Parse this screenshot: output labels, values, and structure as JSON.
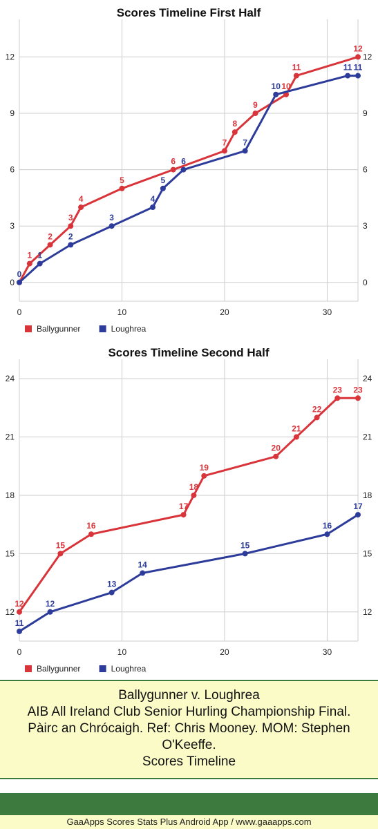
{
  "colors": {
    "series_a": "#d8343a",
    "series_b": "#2d3c9a",
    "grid": "#cccccc",
    "info_bg": "#fbfbc8",
    "green": "#3d7a3d"
  },
  "chart_data": [
    {
      "type": "line",
      "title": "Scores Timeline First Half",
      "xlim": [
        0,
        33
      ],
      "ylim": [
        -1,
        14
      ],
      "xticks": [
        0,
        10,
        20,
        30
      ],
      "yticks": [
        0,
        3,
        6,
        9,
        12
      ],
      "grid": true,
      "legend_position": "bottom-left",
      "series": [
        {
          "name": "Ballygunner",
          "color": "#d8343a",
          "points": [
            [
              0,
              0
            ],
            [
              1,
              1
            ],
            [
              3,
              2
            ],
            [
              5,
              3
            ],
            [
              6,
              4
            ],
            [
              10,
              5
            ],
            [
              15,
              6
            ],
            [
              20,
              7
            ],
            [
              21,
              8
            ],
            [
              23,
              9
            ],
            [
              26,
              10
            ],
            [
              27,
              11
            ],
            [
              33,
              12
            ]
          ],
          "labels": [
            "",
            "1",
            "2",
            "3",
            "4",
            "5",
            "6",
            "7",
            "8",
            "9",
            "10",
            "11",
            "12"
          ]
        },
        {
          "name": "Loughrea",
          "color": "#2d3c9a",
          "points": [
            [
              0,
              0
            ],
            [
              2,
              1
            ],
            [
              5,
              2
            ],
            [
              9,
              3
            ],
            [
              13,
              4
            ],
            [
              14,
              5
            ],
            [
              16,
              6
            ],
            [
              22,
              7
            ],
            [
              25,
              10
            ],
            [
              32,
              11
            ],
            [
              33,
              11
            ]
          ],
          "labels": [
            "0",
            "1",
            "2",
            "3",
            "4",
            "5",
            "6",
            "7",
            "10",
            "11",
            "11"
          ]
        }
      ]
    },
    {
      "type": "line",
      "title": "Scores Timeline Second Half",
      "xlim": [
        0,
        33
      ],
      "ylim": [
        10.5,
        25
      ],
      "xticks": [
        0,
        10,
        20,
        30
      ],
      "yticks": [
        12,
        15,
        18,
        21,
        24
      ],
      "grid": true,
      "legend_position": "bottom-left",
      "series": [
        {
          "name": "Ballygunner",
          "color": "#d8343a",
          "points": [
            [
              0,
              12
            ],
            [
              4,
              15
            ],
            [
              7,
              16
            ],
            [
              16,
              17
            ],
            [
              17,
              18
            ],
            [
              18,
              19
            ],
            [
              25,
              20
            ],
            [
              27,
              21
            ],
            [
              29,
              22
            ],
            [
              31,
              23
            ],
            [
              33,
              23
            ]
          ],
          "labels": [
            "12",
            "15",
            "16",
            "17",
            "18",
            "19",
            "20",
            "21",
            "22",
            "23",
            "23"
          ]
        },
        {
          "name": "Loughrea",
          "color": "#2d3c9a",
          "points": [
            [
              0,
              11
            ],
            [
              3,
              12
            ],
            [
              9,
              13
            ],
            [
              12,
              14
            ],
            [
              22,
              15
            ],
            [
              30,
              16
            ],
            [
              33,
              17
            ]
          ],
          "labels": [
            "11",
            "12",
            "13",
            "14",
            "15",
            "16",
            "17"
          ]
        }
      ]
    }
  ],
  "info": {
    "line1": "Ballygunner v. Loughrea",
    "line2": "AIB All Ireland Club Senior Hurling Championship Final.",
    "line3": "Pàirc an Chrócaigh. Ref: Chris Mooney. MOM: Stephen",
    "line4": "O'Keeffe.",
    "line5": "Scores Timeline"
  },
  "footer": {
    "text": "GaaApps Scores Stats Plus Android App / www.gaaapps.com"
  }
}
